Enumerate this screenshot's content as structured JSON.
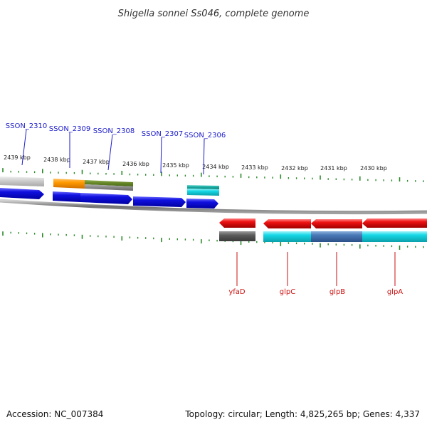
{
  "title": "Shigella sonnei Ss046, complete genome",
  "footer": {
    "accession": "Accession: NC_007384",
    "topology": "Topology: circular; Length: 4,825,265 bp; Genes: 4,337"
  },
  "colors": {
    "backbone": "#808080",
    "tick": "#2a8a2a",
    "forward_label": "#1a1acc",
    "reverse_label": "#cc1111",
    "blue": "#1010e0",
    "red": "#ee1111",
    "cyan": "#16d8e6",
    "steel_blue": "#4a7ab8",
    "orange": "#ff9900",
    "olive": "#6a8a2a",
    "gray": "#888888",
    "light_gray": "#c8c8c8",
    "dark_gray": "#555555",
    "teal": "#1ab0a8"
  },
  "kbp_labels": [
    "2439 kbp",
    "2438 kbp",
    "2437 kbp",
    "2436 kbp",
    "2435 kbp",
    "2434 kbp",
    "2433 kbp",
    "2432 kbp",
    "2431 kbp",
    "2430 kbp"
  ],
  "forward_genes": [
    "SSON_2310",
    "SSON_2309",
    "SSON_2308",
    "SSON_2307",
    "SSON_2306"
  ],
  "reverse_genes": [
    "yfaD",
    "glpC",
    "glpB",
    "glpA"
  ]
}
